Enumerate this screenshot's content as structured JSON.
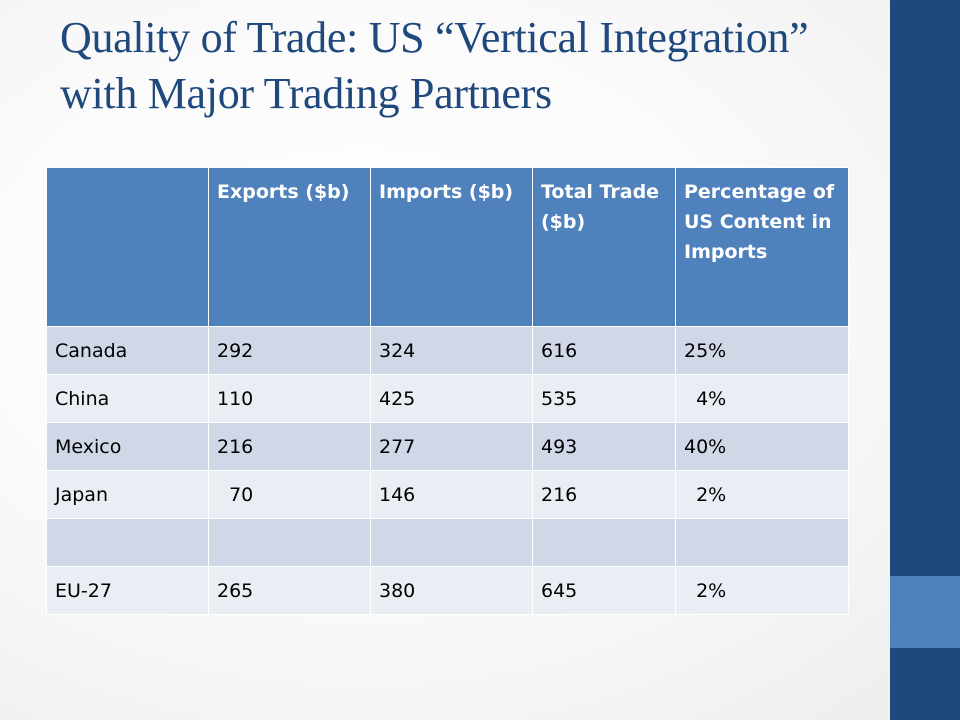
{
  "slide": {
    "title": "Quality of Trade: US “Vertical Integration” with Major Trading Partners"
  },
  "table": {
    "headers": [
      "",
      "Exports ($b)",
      "Imports ($b)",
      "Total Trade ($b)",
      "Percentage of US Content in Imports"
    ],
    "rows": [
      [
        "Canada",
        "292",
        "324",
        "616",
        "25%"
      ],
      [
        "China",
        "110",
        "425",
        "535",
        "  4%"
      ],
      [
        "Mexico",
        "216",
        "277",
        "493",
        "40%"
      ],
      [
        "Japan",
        "  70",
        "146",
        "216",
        "  2%"
      ],
      [
        "",
        "",
        "",
        "",
        ""
      ],
      [
        "EU-27",
        "265",
        "380",
        "645",
        "  2%"
      ]
    ]
  },
  "colors": {
    "title": "#1f497d",
    "sidebar_dark": "#1f497d",
    "sidebar_accent": "#4f81bd",
    "header_fill": "#4f81bd",
    "row_band_dark": "#d0d8e8",
    "row_band_light": "#e9edf4"
  }
}
